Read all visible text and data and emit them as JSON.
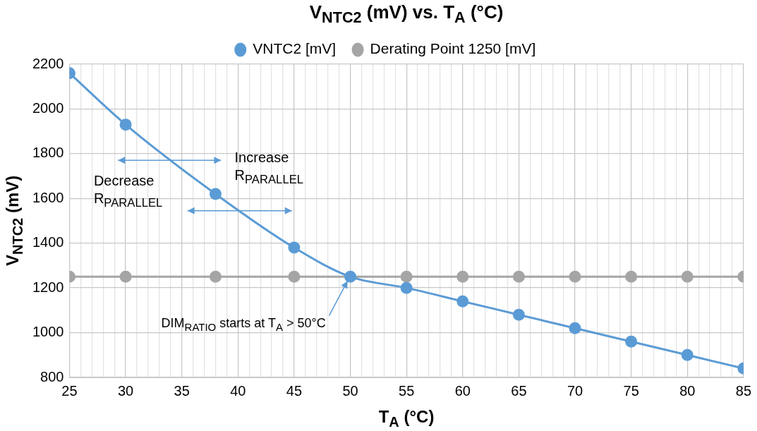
{
  "chart_data": {
    "type": "line",
    "title": "V$_{NTC2}$ (mV) vs. T$_{A}$ (°C)",
    "xlabel": "T$_{A}$ (°C)",
    "ylabel": "V$_{NTC2}$ (mV)",
    "x": [
      25,
      30,
      38,
      45,
      50,
      55,
      60,
      65,
      70,
      75,
      80,
      85
    ],
    "series": [
      {
        "name": "VNTC2 [mV]",
        "color": "#5b9bd5",
        "values": [
          2160,
          1930,
          1620,
          1380,
          1250,
          1200,
          1140,
          1080,
          1020,
          960,
          900,
          840
        ]
      },
      {
        "name": "Derating Point 1250 [mV]",
        "color": "#a5a5a5",
        "values": [
          1250,
          1250,
          1250,
          1250,
          null,
          1250,
          1250,
          1250,
          1250,
          1250,
          1250,
          1250
        ]
      }
    ],
    "xlim": [
      25,
      85
    ],
    "xticks": [
      25,
      {
        "value": 26,
        "label": null
      },
      {
        "value": 27,
        "label": null
      },
      {
        "value": 28,
        "label": null
      },
      {
        "value": 29,
        "label": null
      },
      30,
      {
        "value": 31,
        "label": null
      },
      {
        "value": 32,
        "label": null
      },
      {
        "value": 33,
        "label": null
      },
      {
        "value": 34,
        "label": null
      },
      35,
      {
        "value": 36,
        "label": null
      },
      {
        "value": 37,
        "label": null
      },
      {
        "value": 38,
        "label": null
      },
      {
        "value": 39,
        "label": null
      },
      40,
      {
        "value": 41,
        "label": null
      },
      {
        "value": 42,
        "label": null
      },
      {
        "value": 43,
        "label": null
      },
      {
        "value": 44,
        "label": null
      },
      45,
      {
        "value": 46,
        "label": null
      },
      {
        "value": 47,
        "label": null
      },
      {
        "value": 48,
        "label": null
      },
      {
        "value": 49,
        "label": null
      },
      50,
      {
        "value": 51,
        "label": null
      },
      {
        "value": 52,
        "label": null
      },
      {
        "value": 53,
        "label": null
      },
      {
        "value": 54,
        "label": null
      },
      55,
      {
        "value": 56,
        "label": null
      },
      {
        "value": 57,
        "label": null
      },
      {
        "value": 58,
        "label": null
      },
      {
        "value": 59,
        "label": null
      },
      60,
      {
        "value": 61,
        "label": null
      },
      {
        "value": 62,
        "label": null
      },
      {
        "value": 63,
        "label": null
      },
      {
        "value": 64,
        "label": null
      },
      65,
      {
        "value": 66,
        "label": null
      },
      {
        "value": 67,
        "label": null
      },
      {
        "value": 68,
        "label": null
      },
      {
        "value": 69,
        "label": null
      },
      70,
      {
        "value": 71,
        "label": null
      },
      {
        "value": 72,
        "label": null
      },
      {
        "value": 73,
        "label": null
      },
      {
        "value": 74,
        "label": null
      },
      75,
      {
        "value": 76,
        "label": null
      },
      {
        "value": 77,
        "label": null
      },
      {
        "value": 78,
        "label": null
      },
      {
        "value": 79,
        "label": null
      },
      80,
      {
        "value": 81,
        "label": null
      },
      {
        "value": 82,
        "label": null
      },
      {
        "value": 83,
        "label": null
      },
      {
        "value": 84,
        "label": null
      },
      85
    ],
    "ylim": [
      800,
      2200
    ],
    "yticks": [
      800,
      1000,
      1200,
      1400,
      1600,
      1800,
      2000,
      2200
    ],
    "grid": true,
    "legend": "top",
    "marker": "circle",
    "line_style": "solid",
    "annotations": [
      "Increase\nR$_{PARALLEL}$",
      "Decrease\nR$_{PARALLEL}$",
      {
        "text": "DIM$_{RATIO}$ starts at T$_{A}$ > 50°C",
        "x": 50,
        "y": 1250
      }
    ]
  }
}
